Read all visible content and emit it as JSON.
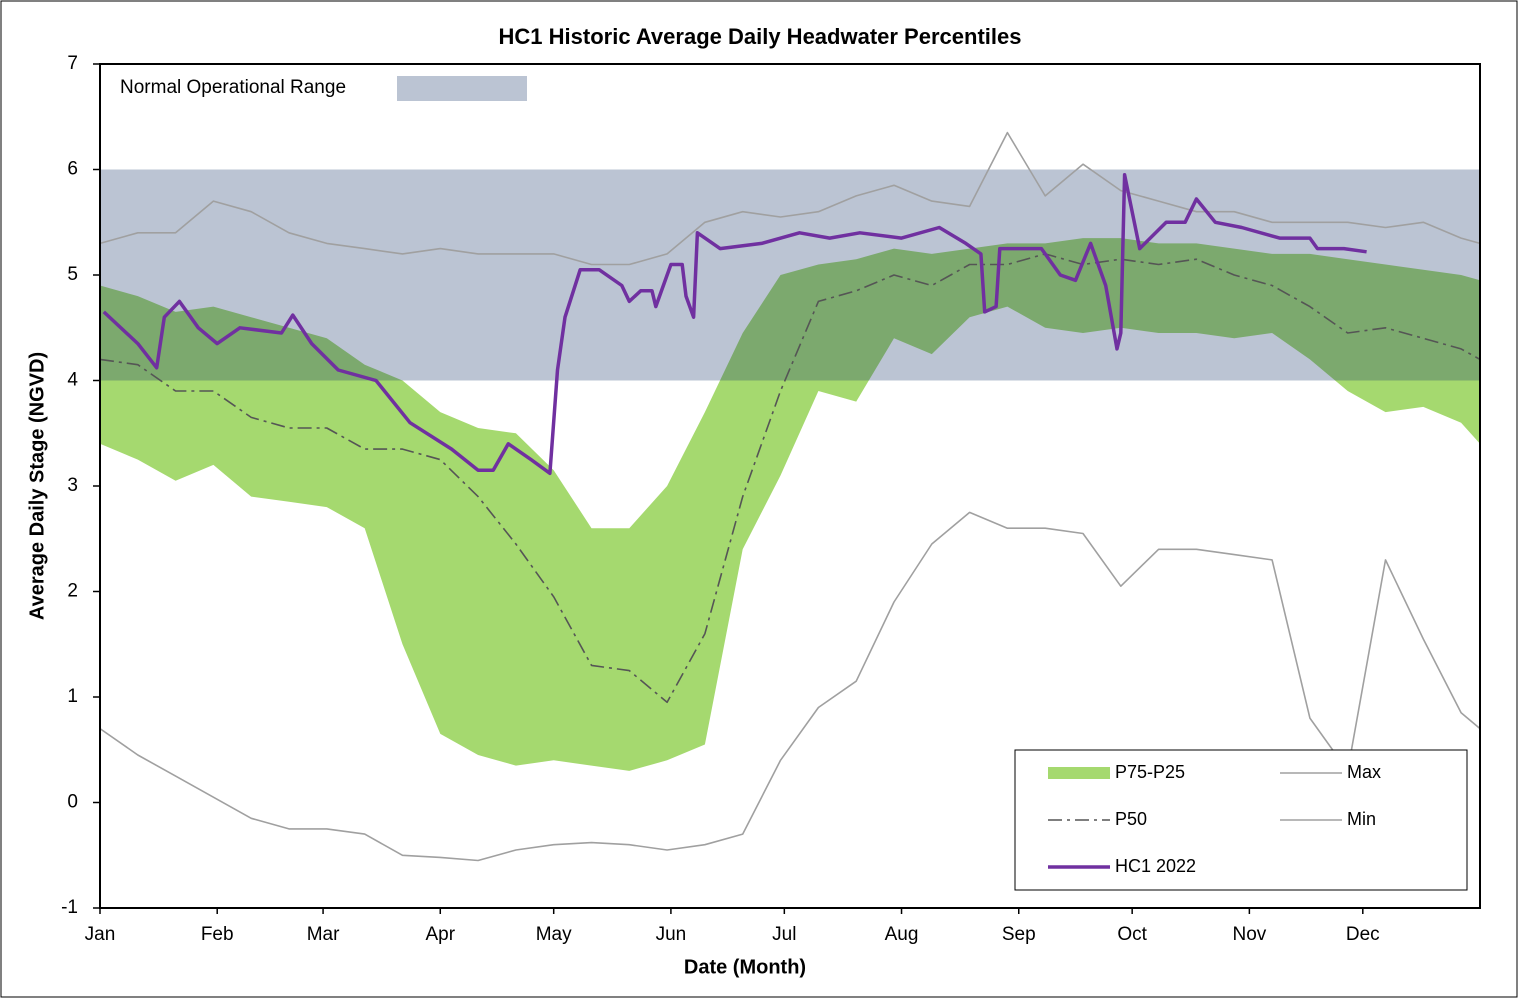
{
  "chart_data": {
    "type": "line",
    "title": "HC1 Historic Average Daily Headwater Percentiles",
    "xlabel": "Date (Month)",
    "ylabel": "Average Daily Stage (NGVD)",
    "xlim": [
      0,
      365
    ],
    "ylim": [
      -1,
      7
    ],
    "yticks": [
      -1,
      0,
      1,
      2,
      3,
      4,
      5,
      6,
      7
    ],
    "xticks": [
      {
        "value": 0,
        "label": "Jan"
      },
      {
        "value": 31,
        "label": "Feb"
      },
      {
        "value": 59,
        "label": "Mar"
      },
      {
        "value": 90,
        "label": "Apr"
      },
      {
        "value": 120,
        "label": "May"
      },
      {
        "value": 151,
        "label": "Jun"
      },
      {
        "value": 181,
        "label": "Jul"
      },
      {
        "value": 212,
        "label": "Aug"
      },
      {
        "value": 243,
        "label": "Sep"
      },
      {
        "value": 273,
        "label": "Oct"
      },
      {
        "value": 304,
        "label": "Nov"
      },
      {
        "value": 334,
        "label": "Dec"
      }
    ],
    "legend": "lower right",
    "band": {
      "label": "Normal Operational Range",
      "ylim": [
        4,
        6
      ],
      "color": "#1e3c6e",
      "opacity": 0.3
    },
    "x": [
      0,
      10,
      20,
      30,
      40,
      50,
      60,
      70,
      80,
      90,
      100,
      110,
      120,
      130,
      140,
      150,
      160,
      170,
      180,
      190,
      200,
      210,
      220,
      230,
      240,
      250,
      260,
      270,
      280,
      290,
      300,
      310,
      320,
      330,
      340,
      350,
      360,
      365
    ],
    "series": [
      {
        "name": "P75-P25",
        "color": "#a5d96f",
        "upper": [
          4.9,
          4.8,
          4.65,
          4.7,
          4.6,
          4.5,
          4.4,
          4.15,
          4.0,
          3.7,
          3.55,
          3.5,
          3.15,
          2.6,
          2.6,
          3.0,
          3.7,
          4.45,
          5.0,
          5.1,
          5.15,
          5.25,
          5.2,
          5.25,
          5.3,
          5.3,
          5.35,
          5.35,
          5.3,
          5.3,
          5.25,
          5.2,
          5.2,
          5.15,
          5.1,
          5.05,
          5.0,
          4.95
        ],
        "lower": [
          3.4,
          3.25,
          3.05,
          3.2,
          2.9,
          2.85,
          2.8,
          2.6,
          1.5,
          0.65,
          0.45,
          0.35,
          0.4,
          0.35,
          0.3,
          0.4,
          0.55,
          2.4,
          3.1,
          3.9,
          3.8,
          4.4,
          4.25,
          4.6,
          4.7,
          4.5,
          4.45,
          4.5,
          4.45,
          4.45,
          4.4,
          4.45,
          4.2,
          3.9,
          3.7,
          3.75,
          3.6,
          3.4
        ]
      },
      {
        "name": "Max",
        "color": "#a0a0a0",
        "values": [
          5.3,
          5.4,
          5.4,
          5.7,
          5.6,
          5.4,
          5.3,
          5.25,
          5.2,
          5.25,
          5.2,
          5.2,
          5.2,
          5.1,
          5.1,
          5.2,
          5.5,
          5.6,
          5.55,
          5.6,
          5.75,
          5.85,
          5.7,
          5.65,
          6.35,
          5.75,
          6.05,
          5.8,
          5.7,
          5.6,
          5.6,
          5.5,
          5.5,
          5.5,
          5.45,
          5.5,
          5.35,
          5.3
        ]
      },
      {
        "name": "P50",
        "color": "#555555",
        "values": [
          4.2,
          4.15,
          3.9,
          3.9,
          3.65,
          3.55,
          3.55,
          3.35,
          3.35,
          3.25,
          2.9,
          2.45,
          1.95,
          1.3,
          1.25,
          0.95,
          1.6,
          2.9,
          3.9,
          4.75,
          4.85,
          5.0,
          4.9,
          5.1,
          5.1,
          5.2,
          5.1,
          5.15,
          5.1,
          5.15,
          5.0,
          4.9,
          4.7,
          4.45,
          4.5,
          4.4,
          4.3,
          4.2
        ]
      },
      {
        "name": "Min",
        "color": "#a0a0a0",
        "values": [
          0.7,
          0.45,
          0.25,
          0.05,
          -0.15,
          -0.25,
          -0.25,
          -0.3,
          -0.5,
          -0.52,
          -0.55,
          -0.45,
          -0.4,
          -0.38,
          -0.4,
          -0.45,
          -0.4,
          -0.3,
          0.4,
          0.9,
          1.15,
          1.9,
          2.45,
          2.75,
          2.6,
          2.6,
          2.55,
          2.05,
          2.4,
          2.4,
          2.35,
          2.3,
          0.8,
          0.3,
          2.3,
          1.55,
          0.85,
          0.7
        ]
      },
      {
        "name": "HC1 2022",
        "color": "#7030a0",
        "x": [
          1,
          10,
          15,
          17,
          21,
          26,
          31,
          37,
          48,
          51,
          56,
          63,
          73,
          82,
          93,
          100,
          104,
          108,
          114,
          119,
          121,
          123,
          127,
          132,
          138,
          140,
          143,
          146,
          147,
          151,
          154,
          155,
          157,
          158,
          164,
          175,
          185,
          193,
          201,
          212,
          222,
          229,
          233,
          234,
          237,
          238,
          249,
          254,
          258,
          262,
          266,
          269,
          270,
          271,
          275,
          282,
          287,
          290,
          295,
          302,
          312,
          320,
          322,
          329,
          335
        ],
        "values": [
          4.65,
          4.35,
          4.12,
          4.6,
          4.75,
          4.5,
          4.35,
          4.5,
          4.45,
          4.62,
          4.35,
          4.1,
          4.0,
          3.6,
          3.35,
          3.15,
          3.15,
          3.4,
          3.25,
          3.12,
          4.1,
          4.6,
          5.05,
          5.05,
          4.9,
          4.75,
          4.85,
          4.85,
          4.7,
          5.1,
          5.1,
          4.8,
          4.6,
          5.4,
          5.25,
          5.3,
          5.4,
          5.35,
          5.4,
          5.35,
          5.45,
          5.3,
          5.2,
          4.65,
          4.7,
          5.25,
          5.25,
          5.0,
          4.95,
          5.3,
          4.9,
          4.3,
          4.45,
          5.95,
          5.25,
          5.5,
          5.5,
          5.72,
          5.5,
          5.45,
          5.35,
          5.35,
          5.25,
          5.25,
          5.22
        ]
      }
    ]
  }
}
